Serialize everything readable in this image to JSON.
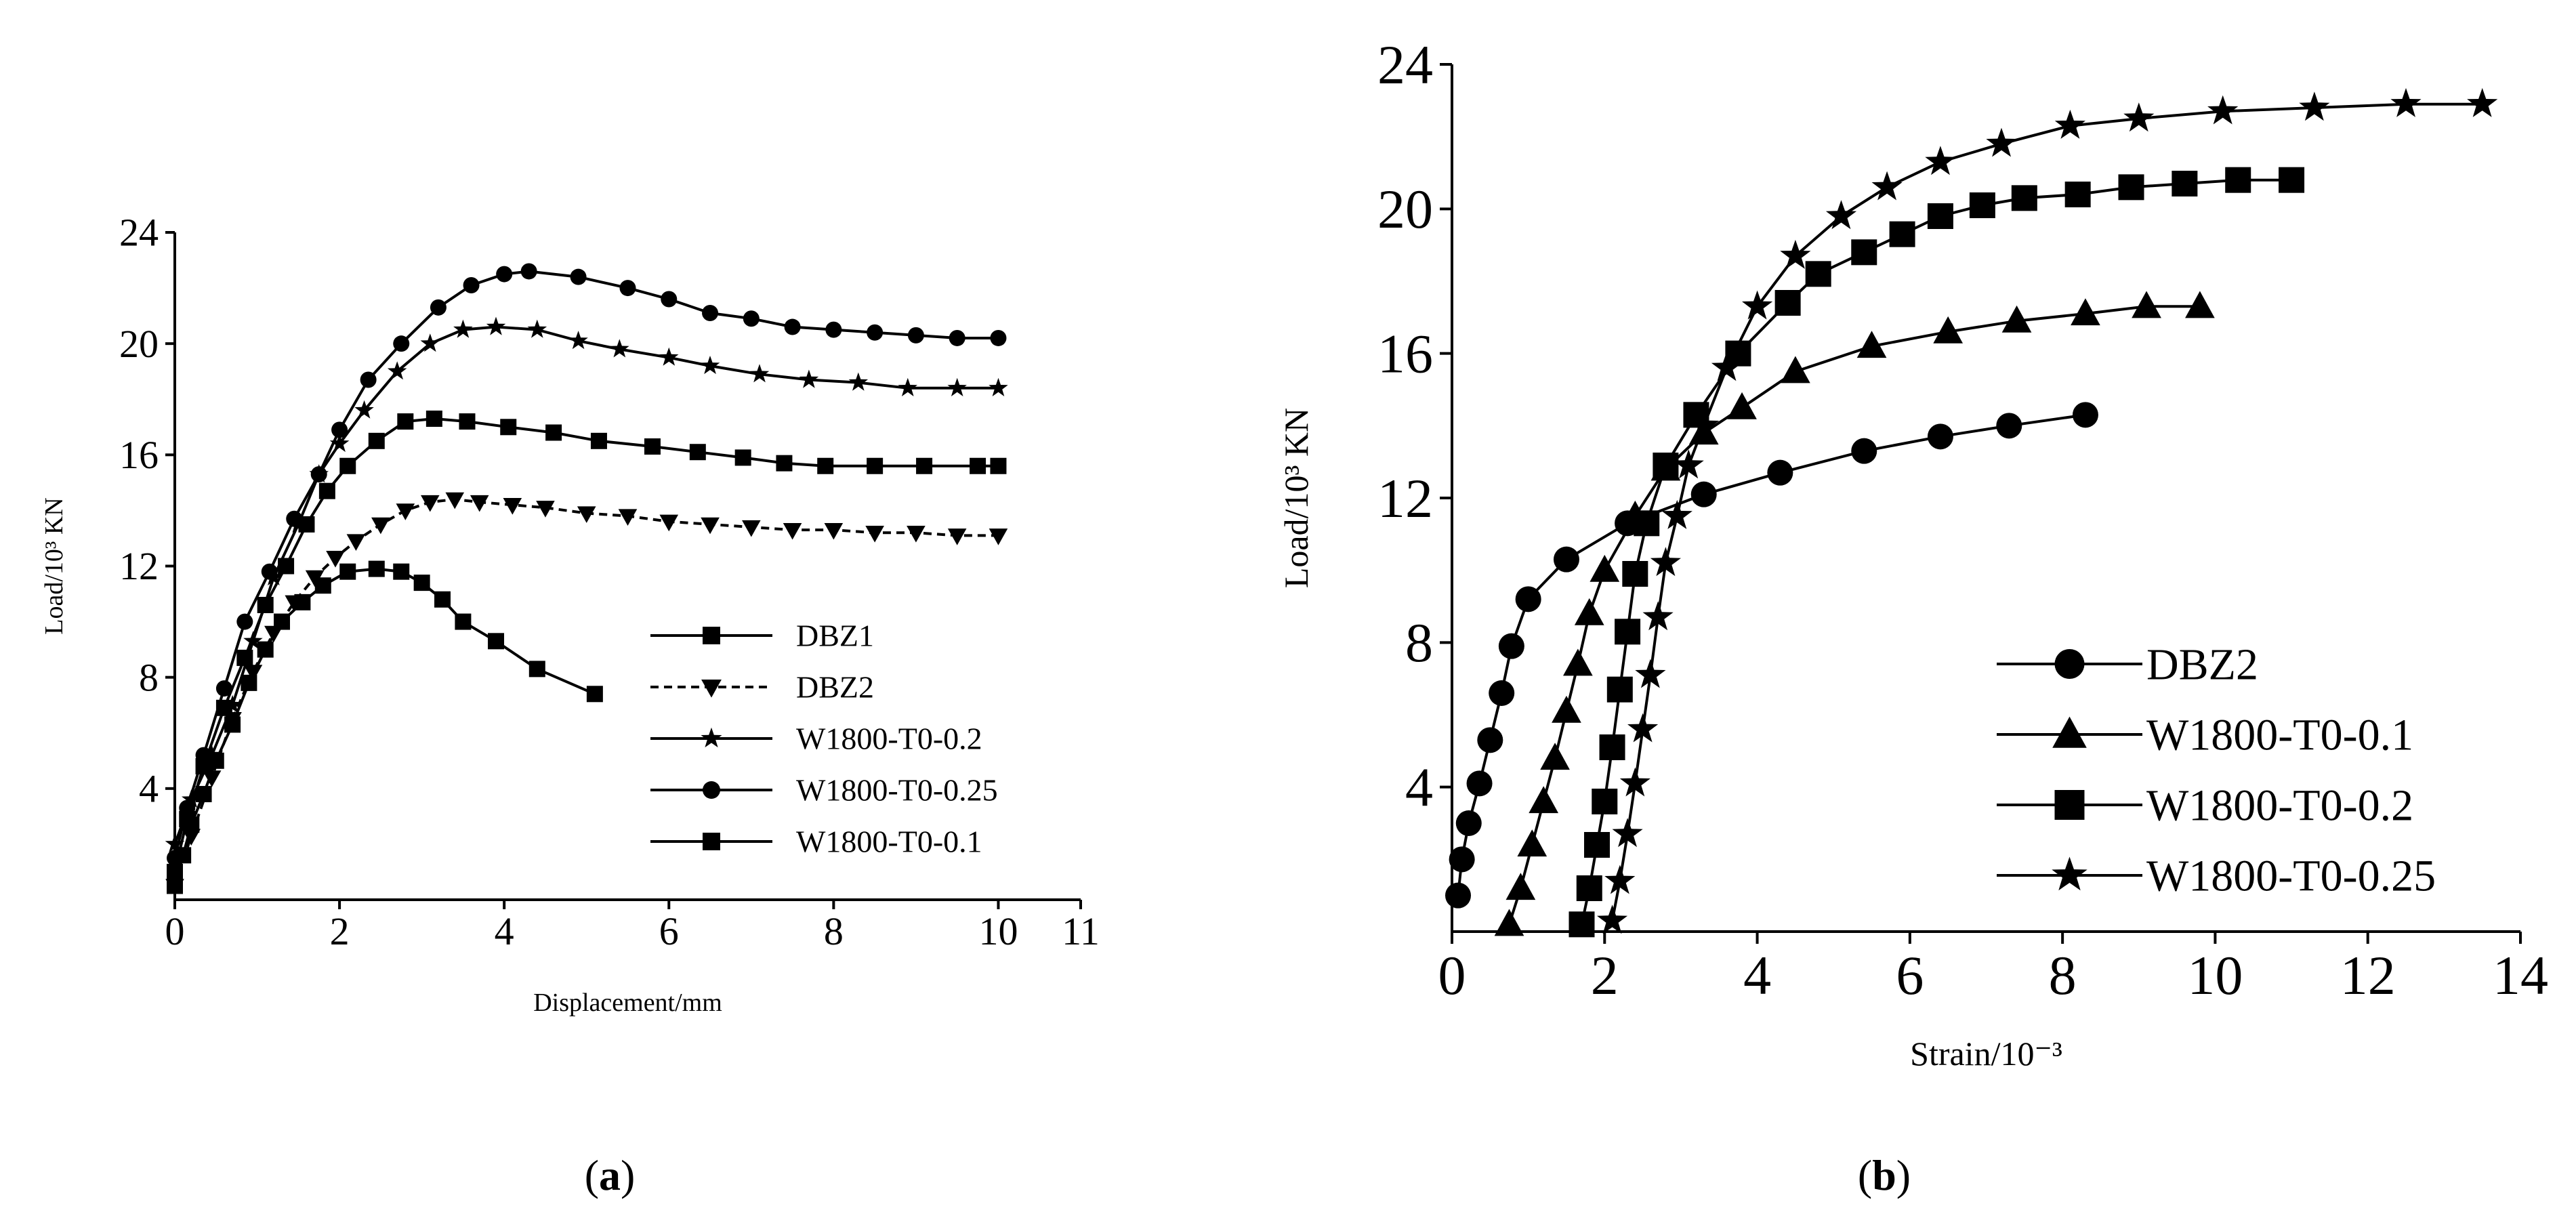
{
  "figure": {
    "caption_a": "(a)",
    "caption_b": "(b)",
    "caption_a_letter": "a",
    "caption_b_letter": "b"
  },
  "chart_data": [
    {
      "id": "a",
      "type": "line",
      "title": "",
      "xlabel": "Displacement/mm",
      "ylabel": "Load/10³ KN",
      "xlim": [
        0,
        11
      ],
      "ylim": [
        0,
        24
      ],
      "xticks": [
        0,
        2,
        4,
        6,
        8,
        10,
        11
      ],
      "yticks": [
        4,
        8,
        12,
        16,
        20,
        24
      ],
      "legend_position": "center-right",
      "series": [
        {
          "name": "DBZ1",
          "marker": "square",
          "dashed": false,
          "x": [
            0,
            0.1,
            0.2,
            0.35,
            0.5,
            0.7,
            0.9,
            1.1,
            1.3,
            1.55,
            1.8,
            2.1,
            2.45,
            2.75,
            3.0,
            3.25,
            3.5,
            3.9,
            4.4,
            5.1
          ],
          "y": [
            0.5,
            1.6,
            2.7,
            3.8,
            5.0,
            6.3,
            7.8,
            9.0,
            10.0,
            10.7,
            11.3,
            11.8,
            11.9,
            11.8,
            11.4,
            10.8,
            10.0,
            9.3,
            8.3,
            7.4
          ]
        },
        {
          "name": "DBZ2",
          "marker": "triangle-down",
          "dashed": true,
          "x": [
            0,
            0.2,
            0.45,
            0.7,
            0.95,
            1.2,
            1.45,
            1.7,
            1.95,
            2.2,
            2.5,
            2.8,
            3.1,
            3.4,
            3.7,
            4.1,
            4.5,
            5.0,
            5.5,
            6.0,
            6.5,
            7.0,
            7.5,
            8.0,
            8.5,
            9.0,
            9.5,
            10.0
          ],
          "y": [
            0.5,
            2.3,
            4.4,
            6.5,
            8.2,
            9.6,
            10.7,
            11.6,
            12.3,
            12.9,
            13.5,
            14.0,
            14.3,
            14.4,
            14.3,
            14.2,
            14.1,
            13.9,
            13.8,
            13.6,
            13.5,
            13.4,
            13.3,
            13.3,
            13.2,
            13.2,
            13.1,
            13.1
          ]
        },
        {
          "name": "W1800-T0-0.2",
          "marker": "star",
          "dashed": false,
          "x": [
            0,
            0.2,
            0.45,
            0.7,
            0.95,
            1.2,
            1.5,
            1.75,
            2.0,
            2.3,
            2.7,
            3.1,
            3.5,
            3.9,
            4.4,
            4.9,
            5.4,
            6.0,
            6.5,
            7.1,
            7.7,
            8.3,
            8.9,
            9.5,
            10.0
          ],
          "y": [
            2.0,
            3.6,
            5.2,
            7.0,
            9.3,
            11.6,
            13.5,
            15.3,
            16.4,
            17.6,
            19.0,
            20.0,
            20.5,
            20.6,
            20.5,
            20.1,
            19.8,
            19.5,
            19.2,
            18.9,
            18.7,
            18.6,
            18.4,
            18.4,
            18.4
          ]
        },
        {
          "name": "W1800-T0-0.25",
          "marker": "circle",
          "dashed": false,
          "x": [
            0,
            0.15,
            0.35,
            0.6,
            0.85,
            1.15,
            1.45,
            1.75,
            2.0,
            2.35,
            2.75,
            3.2,
            3.6,
            4.0,
            4.3,
            4.9,
            5.5,
            6.0,
            6.5,
            7.0,
            7.5,
            8.0,
            8.5,
            9.0,
            9.5,
            10.0
          ],
          "y": [
            1.5,
            3.3,
            5.2,
            7.6,
            10.0,
            11.8,
            13.7,
            15.3,
            16.9,
            18.7,
            20.0,
            21.3,
            22.1,
            22.5,
            22.6,
            22.4,
            22.0,
            21.6,
            21.1,
            20.9,
            20.6,
            20.5,
            20.4,
            20.3,
            20.2,
            20.2
          ]
        },
        {
          "name": "W1800-T0-0.1",
          "marker": "square",
          "dashed": false,
          "x": [
            0,
            0.15,
            0.35,
            0.6,
            0.85,
            1.1,
            1.35,
            1.6,
            1.85,
            2.1,
            2.45,
            2.8,
            3.15,
            3.55,
            4.05,
            4.6,
            5.15,
            5.8,
            6.35,
            6.9,
            7.4,
            7.9,
            8.5,
            9.1,
            9.75,
            10.0
          ],
          "y": [
            1.0,
            2.9,
            4.8,
            6.9,
            8.7,
            10.6,
            12.0,
            13.5,
            14.7,
            15.6,
            16.5,
            17.2,
            17.3,
            17.2,
            17.0,
            16.8,
            16.5,
            16.3,
            16.1,
            15.9,
            15.7,
            15.6,
            15.6,
            15.6,
            15.6,
            15.6
          ]
        }
      ]
    },
    {
      "id": "b",
      "type": "line",
      "title": "",
      "xlabel": "Strain/10⁻³",
      "ylabel": "Load/10³ KN",
      "xlim": [
        0,
        14
      ],
      "ylim": [
        0,
        24
      ],
      "xticks": [
        0,
        2,
        4,
        6,
        8,
        10,
        12,
        14
      ],
      "yticks": [
        4,
        8,
        12,
        16,
        20,
        24
      ],
      "legend_position": "bottom-right",
      "series": [
        {
          "name": "DBZ2",
          "marker": "circle",
          "dashed": false,
          "x": [
            0.08,
            0.13,
            0.22,
            0.36,
            0.5,
            0.65,
            0.78,
            1.0,
            1.5,
            2.3,
            3.3,
            4.3,
            5.4,
            6.4,
            7.3,
            8.3
          ],
          "y": [
            1.0,
            2.0,
            3.0,
            4.1,
            5.3,
            6.6,
            7.9,
            9.2,
            10.3,
            11.3,
            12.1,
            12.7,
            13.3,
            13.7,
            14.0,
            14.3
          ]
        },
        {
          "name": "W1800-T0-0.1",
          "marker": "triangle-up",
          "dashed": false,
          "x": [
            0.75,
            0.9,
            1.05,
            1.2,
            1.35,
            1.5,
            1.65,
            1.8,
            2.0,
            2.4,
            2.8,
            3.3,
            3.8,
            4.5,
            5.5,
            6.5,
            7.4,
            8.3,
            9.1,
            9.8
          ],
          "y": [
            0.2,
            1.2,
            2.4,
            3.6,
            4.8,
            6.1,
            7.4,
            8.8,
            10.0,
            11.5,
            12.8,
            13.8,
            14.5,
            15.5,
            16.2,
            16.6,
            16.9,
            17.1,
            17.3,
            17.3
          ]
        },
        {
          "name": "W1800-T0-0.2",
          "marker": "square",
          "dashed": false,
          "x": [
            1.7,
            1.8,
            1.9,
            2.0,
            2.1,
            2.2,
            2.3,
            2.4,
            2.55,
            2.8,
            3.2,
            3.75,
            4.4,
            4.8,
            5.4,
            5.9,
            6.4,
            6.95,
            7.5,
            8.2,
            8.9,
            9.6,
            10.3,
            11.0
          ],
          "y": [
            0.2,
            1.2,
            2.4,
            3.6,
            5.1,
            6.7,
            8.3,
            9.9,
            11.3,
            12.9,
            14.3,
            16.0,
            17.4,
            18.2,
            18.8,
            19.3,
            19.8,
            20.1,
            20.3,
            20.4,
            20.6,
            20.7,
            20.8,
            20.8
          ]
        },
        {
          "name": "W1800-T0-0.25",
          "marker": "star",
          "dashed": false,
          "x": [
            2.1,
            2.2,
            2.3,
            2.4,
            2.5,
            2.6,
            2.7,
            2.8,
            2.95,
            3.1,
            3.3,
            3.6,
            4.0,
            4.5,
            5.1,
            5.7,
            6.4,
            7.2,
            8.1,
            9.0,
            10.1,
            11.3,
            12.5,
            13.5
          ],
          "y": [
            0.3,
            1.4,
            2.7,
            4.1,
            5.6,
            7.1,
            8.7,
            10.2,
            11.5,
            12.9,
            14.0,
            15.6,
            17.3,
            18.7,
            19.8,
            20.6,
            21.3,
            21.8,
            22.3,
            22.5,
            22.7,
            22.8,
            22.9,
            22.9
          ]
        }
      ]
    }
  ]
}
